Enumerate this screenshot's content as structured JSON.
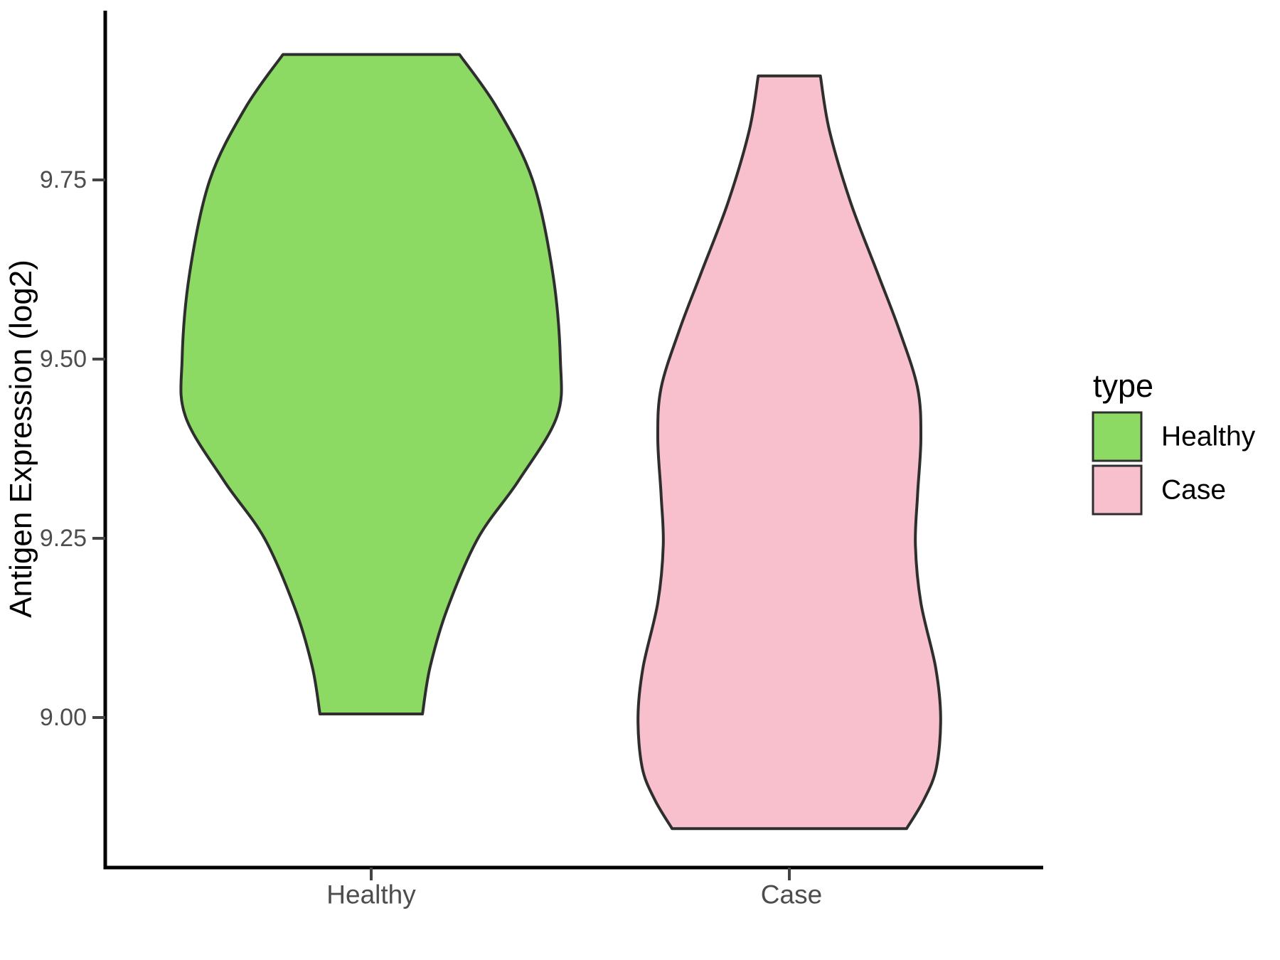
{
  "chart_data": {
    "type": "violin",
    "title": "",
    "y_axis": {
      "label": "Antigen Expression (log2)",
      "tick_labels": [
        "9.75",
        "9.50",
        "9.25",
        "9.00"
      ],
      "tick_values": [
        9.75,
        9.5,
        9.25,
        9.0
      ],
      "range": [
        8.79,
        9.99
      ],
      "grid": "off"
    },
    "x_axis": {
      "label": "",
      "categories": [
        "Healthy",
        "Case"
      ]
    },
    "legend": {
      "title": "type",
      "position": "right",
      "entries": [
        {
          "label": "Healthy",
          "color": "#8CD964"
        },
        {
          "label": "Case",
          "color": "#F8C0CC"
        }
      ]
    },
    "violin_width": 0.9,
    "series": [
      {
        "name": "Healthy",
        "fill": "#8CD964",
        "outline": "#2E2E2E",
        "value_range": [
          9.005,
          9.925
        ],
        "profile": [
          [
            9.925,
            0.21
          ],
          [
            9.85,
            0.3
          ],
          [
            9.75,
            0.384
          ],
          [
            9.62,
            0.432
          ],
          [
            9.5,
            0.45
          ],
          [
            9.42,
            0.442
          ],
          [
            9.33,
            0.35
          ],
          [
            9.25,
            0.254
          ],
          [
            9.15,
            0.18
          ],
          [
            9.07,
            0.14
          ],
          [
            9.005,
            0.122
          ]
        ]
      },
      {
        "name": "Case",
        "fill": "#F8C0CC",
        "outline": "#2E2E2E",
        "value_range": [
          8.845,
          9.895
        ],
        "profile": [
          [
            9.895,
            0.074
          ],
          [
            9.82,
            0.095
          ],
          [
            9.72,
            0.145
          ],
          [
            9.62,
            0.21
          ],
          [
            9.54,
            0.262
          ],
          [
            9.46,
            0.305
          ],
          [
            9.39,
            0.313
          ],
          [
            9.31,
            0.305
          ],
          [
            9.24,
            0.3
          ],
          [
            9.16,
            0.313
          ],
          [
            9.07,
            0.348
          ],
          [
            9.0,
            0.36
          ],
          [
            8.93,
            0.35
          ],
          [
            8.885,
            0.32
          ],
          [
            8.845,
            0.279
          ]
        ]
      }
    ],
    "colors": {
      "axis_line": "#000000",
      "tick_mark": "#444444",
      "tick_label": "#4D4D4D",
      "axis_title": "#000000",
      "legend_text": "#000000",
      "background": "#FFFFFF"
    }
  }
}
